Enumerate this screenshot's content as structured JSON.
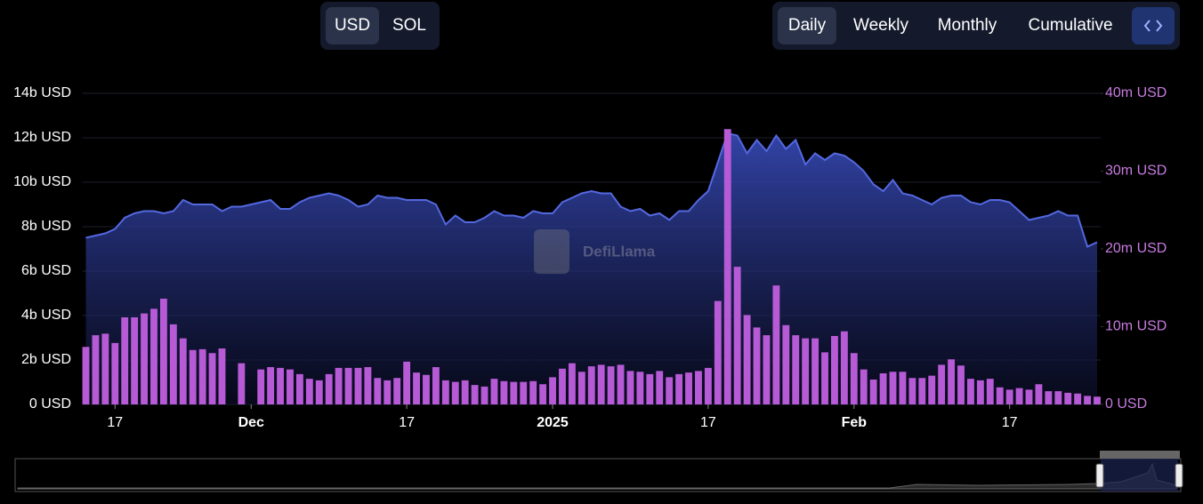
{
  "controls": {
    "currency": [
      "USD",
      "SOL"
    ],
    "periods": [
      "Daily",
      "Weekly",
      "Monthly",
      "Cumulative"
    ]
  },
  "watermark": "DefiLlama",
  "chart_data": {
    "type": "combo",
    "categories": [
      null,
      null,
      null,
      "17",
      null,
      null,
      null,
      null,
      null,
      null,
      null,
      null,
      null,
      null,
      null,
      null,
      null,
      "Dec",
      null,
      null,
      null,
      null,
      null,
      null,
      null,
      null,
      null,
      null,
      null,
      null,
      null,
      null,
      null,
      "17",
      null,
      null,
      null,
      null,
      null,
      null,
      null,
      null,
      null,
      null,
      null,
      null,
      null,
      null,
      "2025",
      null,
      null,
      null,
      null,
      null,
      null,
      null,
      null,
      null,
      null,
      null,
      null,
      null,
      null,
      null,
      "17",
      null,
      null,
      null,
      null,
      null,
      null,
      null,
      null,
      null,
      null,
      null,
      null,
      null,
      null,
      "Feb",
      null,
      null,
      null,
      null,
      null,
      null,
      null,
      null,
      null,
      null,
      null,
      null,
      null,
      null,
      null,
      "17",
      null,
      null,
      null,
      null,
      null,
      null,
      null,
      null,
      null
    ],
    "series": [
      {
        "type": "area",
        "color": "#5468e0",
        "values": [
          7.5,
          7.6,
          7.7,
          7.9,
          8.4,
          8.6,
          8.7,
          8.7,
          8.6,
          8.7,
          9.2,
          9.0,
          9.0,
          9.0,
          8.7,
          8.9,
          8.9,
          9.0,
          9.1,
          9.2,
          8.8,
          8.8,
          9.1,
          9.3,
          9.4,
          9.5,
          9.4,
          9.2,
          8.9,
          9.0,
          9.4,
          9.3,
          9.3,
          9.2,
          9.2,
          9.2,
          9.0,
          8.1,
          8.5,
          8.2,
          8.2,
          8.4,
          8.7,
          8.5,
          8.5,
          8.4,
          8.7,
          8.6,
          8.6,
          9.1,
          9.3,
          9.5,
          9.6,
          9.5,
          9.5,
          8.9,
          8.7,
          8.8,
          8.5,
          8.6,
          8.3,
          8.7,
          8.7,
          9.2,
          9.6,
          10.9,
          12.2,
          12.1,
          11.3,
          11.9,
          11.4,
          12.1,
          11.5,
          11.9,
          10.8,
          11.3,
          11.0,
          11.3,
          11.2,
          10.9,
          10.5,
          9.9,
          9.6,
          10.1,
          9.5,
          9.4,
          9.2,
          9.0,
          9.3,
          9.4,
          9.4,
          9.1,
          9.0,
          9.2,
          9.2,
          9.1,
          8.7,
          8.3,
          8.4,
          8.5,
          8.7,
          8.5,
          8.5,
          7.1,
          7.3
        ]
      },
      {
        "type": "bar",
        "axis": "y2",
        "color": "#b65ad6",
        "values": [
          7.4,
          8.9,
          9.1,
          7.9,
          11.2,
          11.2,
          11.7,
          12.3,
          13.6,
          10.3,
          8.5,
          7.0,
          7.1,
          6.6,
          7.2,
          null,
          5.3,
          null,
          4.5,
          4.8,
          4.7,
          4.5,
          3.9,
          3.3,
          3.1,
          3.9,
          4.7,
          4.7,
          4.7,
          4.8,
          3.4,
          3.1,
          3.4,
          5.5,
          4.1,
          3.8,
          4.8,
          3.1,
          2.9,
          3.1,
          2.5,
          2.3,
          3.3,
          3.0,
          2.9,
          2.9,
          3.0,
          2.6,
          3.5,
          4.6,
          5.3,
          4.2,
          4.9,
          5.1,
          4.9,
          5.1,
          4.3,
          4.2,
          3.9,
          4.3,
          3.5,
          3.9,
          4.1,
          4.3,
          4.7,
          13.3,
          35.4,
          17.7,
          11.5,
          9.9,
          8.9,
          15.3,
          10.2,
          8.9,
          8.5,
          8.5,
          6.7,
          8.8,
          9.4,
          6.6,
          4.5,
          3.2,
          4.0,
          4.2,
          4.2,
          3.4,
          3.4,
          3.7,
          5.1,
          5.8,
          5.0,
          3.3,
          3.1,
          3.3,
          2.2,
          1.9,
          2.1,
          1.9,
          2.6,
          1.7,
          1.7,
          1.5,
          1.4,
          1.1,
          1.0
        ]
      }
    ],
    "ylim": [
      0,
      14
    ],
    "yticks": [
      {
        "value": 0,
        "label": "0 USD"
      },
      {
        "value": 2,
        "label": "2b USD"
      },
      {
        "value": 4,
        "label": "4b USD"
      },
      {
        "value": 6,
        "label": "6b USD"
      },
      {
        "value": 8,
        "label": "8b USD"
      },
      {
        "value": 10,
        "label": "10b USD"
      },
      {
        "value": 12,
        "label": "12b USD"
      },
      {
        "value": 14,
        "label": "14b USD"
      }
    ],
    "y2lim": [
      0,
      40
    ],
    "y2ticks": [
      {
        "value": 0,
        "label": "0 USD"
      },
      {
        "value": 10,
        "label": "10m USD"
      },
      {
        "value": 20,
        "label": "20m USD"
      },
      {
        "value": 30,
        "label": "30m USD"
      },
      {
        "value": 40,
        "label": "40m USD"
      }
    ],
    "y2color": "#c77be0",
    "grid": true
  }
}
